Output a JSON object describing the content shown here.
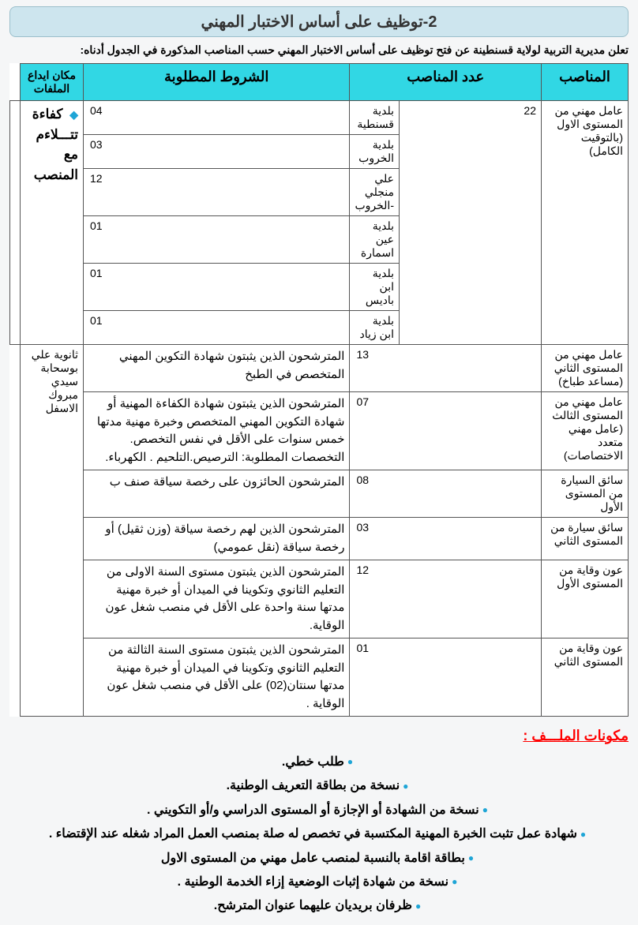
{
  "title": "2-توظيف على أساس الاختبار المهني",
  "intro": "تعلن مديرية التربية لولاية قسنطينة عن فتح توظيف على أساس الاختبار المهني حسب المناصب المذكورة في الجدول أدناه:",
  "headers": {
    "positions": "المناصب",
    "count": "عدد المناصب",
    "requirements": "الشروط المطلوبة",
    "depot": "مكان ايداع الملفات"
  },
  "depot_location": "ثانوية علي بوسحابة سيدي مبروك الاسفل",
  "row1": {
    "position": "عامل مهني من المستوى الاول (بالتوقيت الكامل)",
    "total": "22",
    "req": "كفاءة تتـــلاءم مع المنصب",
    "sub": [
      {
        "place": "بلدية قسنطية",
        "n": "04"
      },
      {
        "place": "بلدية الخروب",
        "n": "03"
      },
      {
        "place": "علي منجلي -الخروب",
        "n": "12"
      },
      {
        "place": "بلدية عين اسمارة",
        "n": "01"
      },
      {
        "place": "بلدية ابن باديس",
        "n": "01"
      },
      {
        "place": "بلدية ابن زياد",
        "n": "01"
      }
    ]
  },
  "rows": [
    {
      "position": "عامل مهني من المستوى الثاني (مساعد طباخ)",
      "count": "13",
      "req": "المترشحون الذين يثبتون شهادة التكوين المهني المتخصص في الطبخ"
    },
    {
      "position": "عامل مهني من المستوى الثالث (عامل مهني متعدد الاختصاصات)",
      "count": "07",
      "req": "المترشحون الذين يثبتون شهادة الكفاءة المهنية أو شهادة التكوين المهني المتخصص وخبرة مهنية مدتها خمس سنوات على الأقل في نفس التخصص. التخصصات المطلوبة: الترصيص.التلحيم . الكهرباء."
    },
    {
      "position": "سائق السيارة من المستوى الأول",
      "count": "08",
      "req": "المترشحون الحائزون على رخصة سياقة  صنف ب"
    },
    {
      "position": "سائق سيارة من المستوى الثاني",
      "count": "03",
      "req": "المترشحون الذين لهم رخصة سياقة (وزن ثقيل) أو رخصة سياقة (نقل عمومي)"
    },
    {
      "position": "عون وقاية من المستوى الأول",
      "count": "12",
      "req": "المترشحون الذين يثبتون مستوى السنة الاولى من التعليم الثانوي وتكوينا في الميدان أو خبرة مهنية مدتها سنة واحدة على الأقل في منصب شغل عون الوقاية."
    },
    {
      "position": "عون وقاية من المستوى الثاني",
      "count": "01",
      "req": "المترشحون الذين يثبتون مستوى السنة الثالثة من التعليم الثانوي وتكوينا في الميدان أو خبرة مهنية مدتها سنتان(02)  على الأقل في منصب شغل عون الوقاية ."
    }
  ],
  "file_section_title": "مكونات الملـــف :",
  "file_items": [
    "طلب خطي.",
    "نسخة من بطاقة التعريف الوطنية.",
    "نسخة من الشهادة أو الإجازة أو المستوى الدراسي و/أو التكويني .",
    "شهادة عمل تثبت الخبرة المهنية المكتسبة في تخصص له صلة بمنصب العمل المراد شغله عند الإقتضاء .",
    "بطاقة اقامة  بالنسبة لمنصب عامل مهني من المستوى الاول",
    "نسخة من شهادة إثبات الوضعية إزاء الخدمة الوطنية .",
    "ظرفان بريديان عليهما عنوان المترشح."
  ],
  "colors": {
    "header_bg": "#31d7e4",
    "title_bg": "#cde5ee",
    "title_border": "#9bbfcb",
    "bullet": "#1ea5d6",
    "file_title": "#ff0000",
    "border": "#555555",
    "page_bg": "#f5f6f7"
  }
}
